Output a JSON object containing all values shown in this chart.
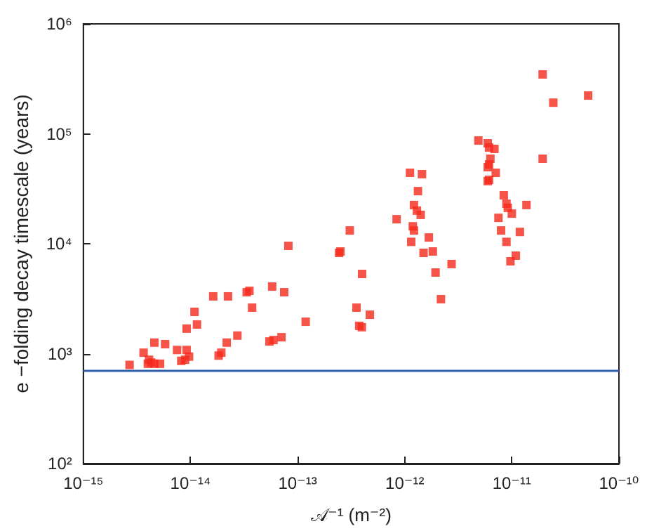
{
  "chart_data": {
    "type": "scatter",
    "xlabel": "𝒜⁻¹ (m⁻²)",
    "ylabel": "e −folding decay timescale (years)",
    "log": "xy",
    "grid": false,
    "marker": "square",
    "xlim": [
      1e-15,
      1e-10
    ],
    "ylim": [
      100,
      1000000
    ],
    "xticks": [
      {
        "value": 1e-15,
        "label": "10⁻¹⁵"
      },
      {
        "value": 1e-14,
        "label": "10⁻¹⁴"
      },
      {
        "value": 1e-13,
        "label": "10⁻¹³"
      },
      {
        "value": 1e-12,
        "label": "10⁻¹²"
      },
      {
        "value": 1e-11,
        "label": "10⁻¹¹"
      },
      {
        "value": 1e-10,
        "label": "10⁻¹⁰"
      }
    ],
    "yticks": [
      {
        "value": 100,
        "label": "10²"
      },
      {
        "value": 1000,
        "label": "10³"
      },
      {
        "value": 10000,
        "label": "10⁴"
      },
      {
        "value": 100000,
        "label": "10⁵"
      },
      {
        "value": 1000000,
        "label": "10⁶"
      }
    ],
    "ref_lines": [
      {
        "axis": "y",
        "value": 700,
        "color": "#2e5fa8"
      }
    ],
    "series": [
      {
        "color": "#f5291b",
        "x": [
          2.7e-15,
          3.65e-15,
          4.6e-15,
          4.1e-15,
          4e-15,
          4.3e-15,
          4.6e-15,
          5.2e-15,
          5.8e-15,
          7.5e-15,
          9.2e-15,
          8.2e-15,
          8.9e-15,
          9.7e-15,
          9.2e-15,
          1.15e-14,
          1.09e-14,
          1.63e-14,
          2.24e-14,
          3.35e-14,
          3.55e-14,
          3.76e-14,
          1.83e-14,
          1.94e-14,
          2.18e-14,
          2.74e-14,
          5.46e-14,
          5.96e-14,
          7.08e-14,
          5.79e-14,
          7.5e-14,
          8.2e-14,
          1.19e-13,
          2.44e-13,
          2.51e-13,
          3.55e-13,
          3.76e-13,
          3.98e-13,
          4e-13,
          3.07e-13,
          4.73e-13,
          8.4e-13,
          1.12e-12,
          1.45e-12,
          1.33e-12,
          1.22e-12,
          1.3e-12,
          1.41e-12,
          1.19e-12,
          1.22e-12,
          1.15e-12,
          1.68e-12,
          1.5e-12,
          1.83e-12,
          1.94e-12,
          2.74e-12,
          2.18e-12,
          4.87e-12,
          5.96e-12,
          6.13e-12,
          6.88e-12,
          6.31e-12,
          6.13e-12,
          5.96e-12,
          5.96e-12,
          6.13e-12,
          7.08e-12,
          1.94e-11,
          8.41e-12,
          8.91e-12,
          9.17e-12,
          1e-11,
          7.5e-12,
          1.37e-11,
          7.94e-12,
          1.19e-11,
          8.91e-12,
          1.09e-11,
          9.71e-12,
          1.94e-11,
          2.44e-11,
          5.16e-11
        ],
        "values": [
          790,
          1020,
          1260,
          880,
          810,
          830,
          810,
          810,
          1220,
          1080,
          1080,
          860,
          880,
          940,
          1690,
          1840,
          2400,
          3320,
          3320,
          3620,
          3730,
          2620,
          960,
          1020,
          1260,
          1460,
          1290,
          1330,
          1410,
          4080,
          3620,
          9570,
          1950,
          8260,
          8500,
          2620,
          1790,
          1740,
          5310,
          13200,
          2260,
          16700,
          44200,
          42900,
          30100,
          22500,
          20000,
          18300,
          14400,
          13200,
          10400,
          11400,
          8260,
          8500,
          5470,
          6530,
          3130,
          86900,
          82000,
          75000,
          72900,
          59300,
          52700,
          49700,
          37100,
          38100,
          44200,
          59300,
          27600,
          23100,
          21200,
          18800,
          17200,
          22500,
          13200,
          12800,
          10400,
          7790,
          6920,
          347000,
          192000,
          223000
        ]
      }
    ]
  }
}
